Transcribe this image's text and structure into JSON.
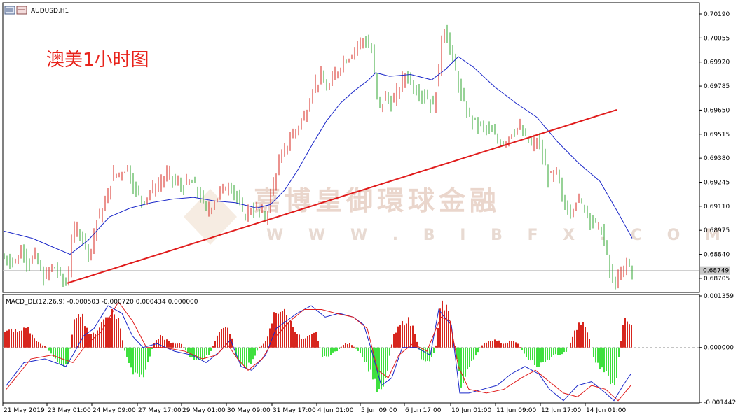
{
  "window": {
    "title": "AUDUSD,H1"
  },
  "annotation": "澳美1小时图",
  "watermark": {
    "line1": "嘉博皇御環球金融",
    "line2": "W W W . B I B F X . C O M"
  },
  "colors": {
    "bull": "#d7261e",
    "bear": "#2fa52f",
    "ma": "#1a27c9",
    "trend": "#e01b1b",
    "macd_pos": "#d7261e",
    "macd_neg": "#3fe03f",
    "macd_line": "#1a27c9",
    "signal_line": "#e01b1b"
  },
  "chart_data": [
    {
      "type": "candlestick",
      "title": "AUDUSD,H1",
      "ylim": [
        0.6863,
        0.70245
      ],
      "y_ticks": [
        "0.70190",
        "0.70055",
        "0.69920",
        "0.69785",
        "0.69650",
        "0.69515",
        "0.69380",
        "0.69245",
        "0.69110",
        "0.68975",
        "0.68840",
        "0.68705"
      ],
      "current_price": "0.68749",
      "x_ticks": [
        "21 May 2019",
        "23 May 01:00",
        "24 May 09:00",
        "27 May 17:00",
        "29 May 01:00",
        "30 May 09:00",
        "31 May 17:00",
        "4 Jun 01:00",
        "5 Jun 09:00",
        "6 Jun 17:00",
        "10 Jun 01:00",
        "11 Jun 09:00",
        "12 Jun 17:00",
        "14 Jun 01:00"
      ],
      "close_path": [
        [
          0,
          0.6882
        ],
        [
          18,
          0.688
        ],
        [
          26,
          0.6889
        ],
        [
          34,
          0.6878
        ],
        [
          44,
          0.6883
        ],
        [
          56,
          0.687
        ],
        [
          70,
          0.6878
        ],
        [
          82,
          0.687
        ],
        [
          90,
          0.6867
        ],
        [
          96,
          0.6893
        ],
        [
          104,
          0.6898
        ],
        [
          112,
          0.6894
        ],
        [
          122,
          0.6883
        ],
        [
          132,
          0.6903
        ],
        [
          144,
          0.6912
        ],
        [
          154,
          0.6928
        ],
        [
          166,
          0.693
        ],
        [
          176,
          0.6933
        ],
        [
          186,
          0.692
        ],
        [
          198,
          0.6914
        ],
        [
          210,
          0.692
        ],
        [
          222,
          0.6924
        ],
        [
          234,
          0.6929
        ],
        [
          244,
          0.6924
        ],
        [
          256,
          0.6922
        ],
        [
          266,
          0.6925
        ],
        [
          278,
          0.6918
        ],
        [
          288,
          0.6908
        ],
        [
          300,
          0.6914
        ],
        [
          310,
          0.692
        ],
        [
          322,
          0.6924
        ],
        [
          332,
          0.6915
        ],
        [
          342,
          0.6905
        ],
        [
          352,
          0.691
        ],
        [
          362,
          0.6908
        ],
        [
          374,
          0.6905
        ],
        [
          384,
          0.6925
        ],
        [
          394,
          0.6937
        ],
        [
          406,
          0.6948
        ],
        [
          418,
          0.6955
        ],
        [
          430,
          0.6963
        ],
        [
          440,
          0.6978
        ],
        [
          452,
          0.6983
        ],
        [
          462,
          0.6976
        ],
        [
          472,
          0.6985
        ],
        [
          484,
          0.6993
        ],
        [
          494,
          0.6996
        ],
        [
          504,
          0.7002
        ],
        [
          514,
          0.7005
        ],
        [
          524,
          0.6998
        ],
        [
          534,
          0.6965
        ],
        [
          544,
          0.6973
        ],
        [
          554,
          0.6968
        ],
        [
          564,
          0.6978
        ],
        [
          574,
          0.6986
        ],
        [
          584,
          0.6978
        ],
        [
          594,
          0.6975
        ],
        [
          604,
          0.6972
        ],
        [
          612,
          0.6966
        ],
        [
          620,
          0.6988
        ],
        [
          626,
          0.7015
        ],
        [
          634,
          0.7002
        ],
        [
          642,
          0.699
        ],
        [
          652,
          0.6972
        ],
        [
          662,
          0.6962
        ],
        [
          672,
          0.6958
        ],
        [
          684,
          0.6955
        ],
        [
          694,
          0.6953
        ],
        [
          704,
          0.6948
        ],
        [
          714,
          0.6947
        ],
        [
          724,
          0.6953
        ],
        [
          734,
          0.6955
        ],
        [
          742,
          0.695
        ],
        [
          752,
          0.6945
        ],
        [
          762,
          0.6948
        ],
        [
          770,
          0.6935
        ],
        [
          778,
          0.6926
        ],
        [
          788,
          0.693
        ],
        [
          796,
          0.6915
        ],
        [
          806,
          0.6908
        ],
        [
          816,
          0.6914
        ],
        [
          826,
          0.6912
        ],
        [
          834,
          0.6906
        ],
        [
          844,
          0.69
        ],
        [
          852,
          0.6898
        ],
        [
          860,
          0.6882
        ],
        [
          866,
          0.687
        ],
        [
          872,
          0.6868
        ],
        [
          880,
          0.6872
        ],
        [
          888,
          0.688
        ],
        [
          896,
          0.68749
        ]
      ],
      "moving_average": [
        [
          0,
          0.6897
        ],
        [
          40,
          0.6893
        ],
        [
          70,
          0.6888
        ],
        [
          94,
          0.6884
        ],
        [
          120,
          0.6892
        ],
        [
          150,
          0.6905
        ],
        [
          180,
          0.691
        ],
        [
          210,
          0.6913
        ],
        [
          240,
          0.6915
        ],
        [
          270,
          0.6916
        ],
        [
          300,
          0.6914
        ],
        [
          330,
          0.6913
        ],
        [
          360,
          0.691
        ],
        [
          380,
          0.6912
        ],
        [
          400,
          0.692
        ],
        [
          420,
          0.6932
        ],
        [
          440,
          0.6946
        ],
        [
          460,
          0.6959
        ],
        [
          480,
          0.6969
        ],
        [
          500,
          0.6976
        ],
        [
          520,
          0.6982
        ],
        [
          530,
          0.6986
        ],
        [
          550,
          0.6984
        ],
        [
          580,
          0.6985
        ],
        [
          610,
          0.6982
        ],
        [
          630,
          0.6988
        ],
        [
          648,
          0.6995
        ],
        [
          670,
          0.6989
        ],
        [
          700,
          0.6978
        ],
        [
          730,
          0.6969
        ],
        [
          760,
          0.6961
        ],
        [
          790,
          0.6947
        ],
        [
          820,
          0.6935
        ],
        [
          850,
          0.6925
        ],
        [
          875,
          0.6908
        ],
        [
          896,
          0.6893
        ]
      ],
      "trend_line": [
        [
          92,
          0.68678
        ],
        [
          876,
          0.69652
        ]
      ]
    },
    {
      "type": "histogram+lines",
      "title": "MACD_DL(12,26,9) -0.000503 -0.000720 0.000434 0.000000",
      "ylim": [
        -0.001442,
        0.001359
      ],
      "y_ticks": [
        "0.001359",
        "0.000000",
        "-0.001442"
      ],
      "histogram": [
        [
          0,
          0.0004
        ],
        [
          10,
          0.0005
        ],
        [
          20,
          0.0004
        ],
        [
          30,
          0.0006
        ],
        [
          40,
          0.0003
        ],
        [
          50,
          0.0001
        ],
        [
          60,
          0.0
        ],
        [
          70,
          -0.0003
        ],
        [
          80,
          -0.0005
        ],
        [
          90,
          -0.0004
        ],
        [
          100,
          0.0008
        ],
        [
          106,
          0.0011
        ],
        [
          112,
          0.0008
        ],
        [
          122,
          0.0003
        ],
        [
          132,
          0.0005
        ],
        [
          142,
          0.0008
        ],
        [
          152,
          0.001
        ],
        [
          162,
          0.0008
        ],
        [
          172,
          -0.0002
        ],
        [
          182,
          -0.0007
        ],
        [
          192,
          -0.0009
        ],
        [
          202,
          -0.0006
        ],
        [
          212,
          0.0001
        ],
        [
          222,
          0.0003
        ],
        [
          232,
          0.0002
        ],
        [
          242,
          0.0001
        ],
        [
          252,
          0.0001
        ],
        [
          262,
          -0.0002
        ],
        [
          272,
          -0.0004
        ],
        [
          282,
          -0.0003
        ],
        [
          292,
          -0.0002
        ],
        [
          302,
          0.0003
        ],
        [
          312,
          0.0006
        ],
        [
          322,
          0.0004
        ],
        [
          332,
          -0.0004
        ],
        [
          342,
          -0.0006
        ],
        [
          352,
          -0.0004
        ],
        [
          362,
          0.0
        ],
        [
          374,
          0.0002
        ],
        [
          384,
          0.0009
        ],
        [
          394,
          0.0011
        ],
        [
          404,
          0.0008
        ],
        [
          414,
          0.0005
        ],
        [
          424,
          0.0002
        ],
        [
          434,
          0.0003
        ],
        [
          444,
          0.0004
        ],
        [
          454,
          -0.0003
        ],
        [
          464,
          -0.0002
        ],
        [
          474,
          -0.0001
        ],
        [
          484,
          0.0001
        ],
        [
          494,
          0.0001
        ],
        [
          504,
          -0.0001
        ],
        [
          514,
          -0.0004
        ],
        [
          524,
          -0.0008
        ],
        [
          534,
          -0.0012
        ],
        [
          544,
          -0.0008
        ],
        [
          554,
          0.0003
        ],
        [
          564,
          0.0006
        ],
        [
          574,
          0.0008
        ],
        [
          584,
          0.0005
        ],
        [
          594,
          -0.0003
        ],
        [
          604,
          -0.0004
        ],
        [
          614,
          -0.0001
        ],
        [
          622,
          0.0011
        ],
        [
          628,
          0.0012
        ],
        [
          636,
          0.0008
        ],
        [
          644,
          -0.0002
        ],
        [
          652,
          -0.0011
        ],
        [
          662,
          -0.0006
        ],
        [
          672,
          -0.0002
        ],
        [
          682,
          0.0001
        ],
        [
          692,
          0.0002
        ],
        [
          702,
          0.0002
        ],
        [
          712,
          0.0001
        ],
        [
          722,
          0.0002
        ],
        [
          732,
          0.0001
        ],
        [
          742,
          -0.0002
        ],
        [
          752,
          -0.0004
        ],
        [
          762,
          -0.0005
        ],
        [
          772,
          -0.0004
        ],
        [
          782,
          -0.0002
        ],
        [
          792,
          -0.0002
        ],
        [
          802,
          -0.0001
        ],
        [
          812,
          0.0004
        ],
        [
          822,
          0.0007
        ],
        [
          832,
          0.0004
        ],
        [
          842,
          -0.0004
        ],
        [
          852,
          -0.0006
        ],
        [
          862,
          -0.0009
        ],
        [
          872,
          -0.001
        ],
        [
          882,
          0.0007
        ],
        [
          890,
          0.0008
        ],
        [
          896,
          0.0006
        ]
      ],
      "macd_line": [
        [
          5,
          -0.001
        ],
        [
          30,
          -0.0004
        ],
        [
          60,
          -0.0003
        ],
        [
          90,
          -0.0005
        ],
        [
          100,
          -0.0002
        ],
        [
          115,
          0.0003
        ],
        [
          130,
          0.0005
        ],
        [
          150,
          0.0011
        ],
        [
          170,
          0.0009
        ],
        [
          185,
          0.0003
        ],
        [
          200,
          0.0
        ],
        [
          220,
          0.0001
        ],
        [
          245,
          -0.0001
        ],
        [
          270,
          -0.0002
        ],
        [
          290,
          -0.0004
        ],
        [
          310,
          -0.0001
        ],
        [
          325,
          0.0002
        ],
        [
          340,
          -0.0005
        ],
        [
          355,
          -0.0006
        ],
        [
          375,
          -0.0002
        ],
        [
          390,
          0.0005
        ],
        [
          405,
          0.0007
        ],
        [
          420,
          0.0009
        ],
        [
          440,
          0.0011
        ],
        [
          460,
          0.0008
        ],
        [
          480,
          0.0009
        ],
        [
          500,
          0.0008
        ],
        [
          515,
          0.0006
        ],
        [
          525,
          0.0
        ],
        [
          540,
          -0.001
        ],
        [
          555,
          -0.0008
        ],
        [
          570,
          0.0
        ],
        [
          590,
          0.0
        ],
        [
          610,
          -0.0002
        ],
        [
          622,
          0.001
        ],
        [
          630,
          0.0008
        ],
        [
          640,
          0.0006
        ],
        [
          652,
          -0.0012
        ],
        [
          665,
          -0.0012
        ],
        [
          685,
          -0.0011
        ],
        [
          705,
          -0.001
        ],
        [
          725,
          -0.0007
        ],
        [
          745,
          -0.0005
        ],
        [
          765,
          -0.0007
        ],
        [
          780,
          -0.0011
        ],
        [
          800,
          -0.0014
        ],
        [
          820,
          -0.001
        ],
        [
          840,
          -0.0009
        ],
        [
          860,
          -0.0012
        ],
        [
          872,
          -0.0014
        ],
        [
          885,
          -0.001
        ],
        [
          896,
          -0.0007
        ]
      ],
      "signal_line": [
        [
          5,
          -0.0011
        ],
        [
          40,
          -0.0003
        ],
        [
          70,
          -0.0002
        ],
        [
          100,
          -0.0004
        ],
        [
          120,
          0.0001
        ],
        [
          140,
          0.0004
        ],
        [
          165,
          0.0012
        ],
        [
          185,
          0.0007
        ],
        [
          205,
          0.0
        ],
        [
          230,
          0.0
        ],
        [
          260,
          -0.0001
        ],
        [
          285,
          -0.0003
        ],
        [
          305,
          -0.0002
        ],
        [
          320,
          0.0001
        ],
        [
          335,
          -0.0003
        ],
        [
          350,
          -0.0006
        ],
        [
          370,
          -0.0003
        ],
        [
          390,
          0.0003
        ],
        [
          410,
          0.0007
        ],
        [
          430,
          0.001
        ],
        [
          455,
          0.001
        ],
        [
          475,
          0.0009
        ],
        [
          500,
          0.0008
        ],
        [
          520,
          0.0005
        ],
        [
          535,
          -0.0006
        ],
        [
          550,
          -0.0008
        ],
        [
          565,
          -0.0002
        ],
        [
          585,
          0.0001
        ],
        [
          605,
          -0.0001
        ],
        [
          625,
          0.0008
        ],
        [
          638,
          0.0007
        ],
        [
          650,
          -0.0005
        ],
        [
          665,
          -0.0011
        ],
        [
          690,
          -0.0012
        ],
        [
          715,
          -0.0011
        ],
        [
          740,
          -0.0008
        ],
        [
          760,
          -0.0006
        ],
        [
          780,
          -0.0009
        ],
        [
          800,
          -0.0012
        ],
        [
          820,
          -0.0013
        ],
        [
          840,
          -0.001
        ],
        [
          860,
          -0.0011
        ],
        [
          878,
          -0.0014
        ],
        [
          896,
          -0.001
        ]
      ]
    }
  ]
}
